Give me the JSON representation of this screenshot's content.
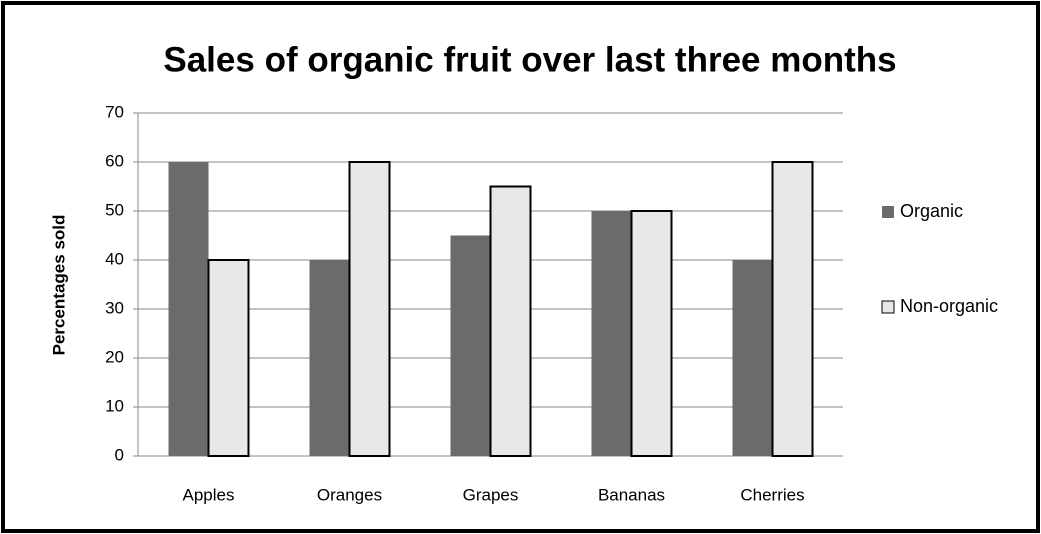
{
  "chart_data": {
    "type": "bar",
    "title": "Sales of organic fruit over last three months",
    "y_label": "Percentages sold",
    "categories": [
      "Apples",
      "Oranges",
      "Grapes",
      "Bananas",
      "Cherries"
    ],
    "series": [
      {
        "name": "Organic",
        "color": "#6b6b6b",
        "values": [
          60,
          40,
          45,
          50,
          40
        ]
      },
      {
        "name": "Non-organic",
        "color": "#e8e8e8",
        "values": [
          40,
          60,
          55,
          50,
          60
        ]
      }
    ],
    "ylim": [
      0,
      70
    ],
    "yticks": [
      0,
      10,
      20,
      30,
      40,
      50,
      60,
      70
    ],
    "grid": true,
    "legend": "right"
  }
}
